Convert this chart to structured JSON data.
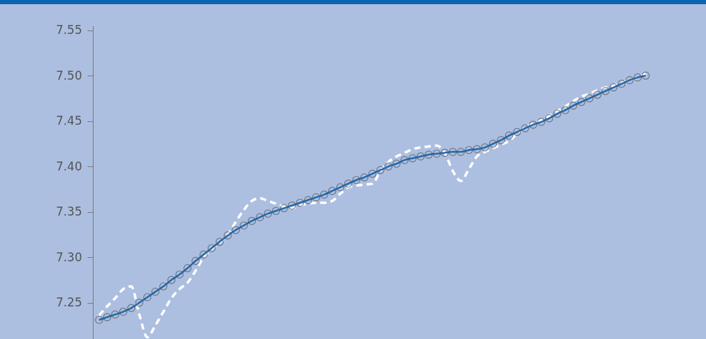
{
  "chart_data": {
    "type": "line",
    "categories": [
      null,
      null,
      null,
      null,
      null,
      null,
      null,
      null,
      null,
      null,
      null,
      null,
      null,
      null,
      null,
      null,
      null,
      null,
      null,
      null,
      null,
      null,
      null,
      null,
      null,
      null,
      null,
      null,
      null,
      null,
      null,
      null,
      null,
      null,
      null,
      null,
      null,
      null,
      null,
      null,
      null,
      null,
      null,
      null,
      null,
      null,
      null,
      null,
      null,
      null,
      null,
      null,
      null,
      null,
      null,
      null,
      null,
      null,
      null,
      null,
      null,
      null,
      null,
      null,
      null,
      null,
      null,
      null,
      null
    ],
    "series": [
      {
        "color": "#ffffff",
        "line_style": "dashed",
        "marker": "none",
        "values": [
          7.236,
          7.246,
          7.255,
          7.265,
          7.268,
          7.237,
          7.212,
          7.225,
          7.24,
          7.255,
          7.265,
          7.272,
          7.285,
          7.3,
          7.309,
          7.316,
          7.325,
          7.339,
          7.352,
          7.362,
          7.365,
          7.362,
          7.359,
          7.356,
          7.354,
          7.357,
          7.359,
          7.36,
          7.36,
          7.362,
          7.37,
          7.377,
          7.379,
          7.38,
          7.381,
          7.395,
          7.405,
          7.411,
          7.415,
          7.419,
          7.421,
          7.422,
          7.423,
          7.415,
          7.395,
          7.384,
          7.397,
          7.411,
          7.416,
          7.42,
          7.424,
          7.428,
          7.436,
          7.443,
          7.447,
          7.451,
          7.456,
          7.461,
          7.466,
          7.472,
          7.477,
          7.48,
          7.484,
          7.487,
          7.489,
          7.492,
          7.495,
          7.498,
          7.502
        ]
      },
      {
        "color": "#1a6ab5",
        "line_style": "solid",
        "marker": "circle",
        "values": [
          7.231,
          7.234,
          7.237,
          7.24,
          7.244,
          7.25,
          7.256,
          7.262,
          7.268,
          7.275,
          7.281,
          7.288,
          7.296,
          7.303,
          7.31,
          7.317,
          7.324,
          7.33,
          7.335,
          7.34,
          7.344,
          7.348,
          7.351,
          7.354,
          7.357,
          7.36,
          7.363,
          7.366,
          7.369,
          7.373,
          7.377,
          7.381,
          7.385,
          7.388,
          7.392,
          7.396,
          7.4,
          7.403,
          7.407,
          7.409,
          7.411,
          7.413,
          7.414,
          7.415,
          7.416,
          7.416,
          7.418,
          7.419,
          7.421,
          7.425,
          7.429,
          7.434,
          7.438,
          7.442,
          7.446,
          7.449,
          7.453,
          7.458,
          7.462,
          7.467,
          7.471,
          7.475,
          7.479,
          7.483,
          7.487,
          7.491,
          7.495,
          7.498,
          7.5
        ]
      }
    ],
    "ylim": [
      7.21,
      7.555
    ],
    "yticks": [
      {
        "value": 7.25,
        "label": "7.25"
      },
      {
        "value": 7.3,
        "label": "7.30"
      },
      {
        "value": 7.35,
        "label": "7.35"
      },
      {
        "value": 7.4,
        "label": "7.40"
      },
      {
        "value": 7.45,
        "label": "7.45"
      },
      {
        "value": 7.5,
        "label": "7.50"
      },
      {
        "value": 7.55,
        "label": "7.55"
      }
    ],
    "tick_labels": "y"
  }
}
